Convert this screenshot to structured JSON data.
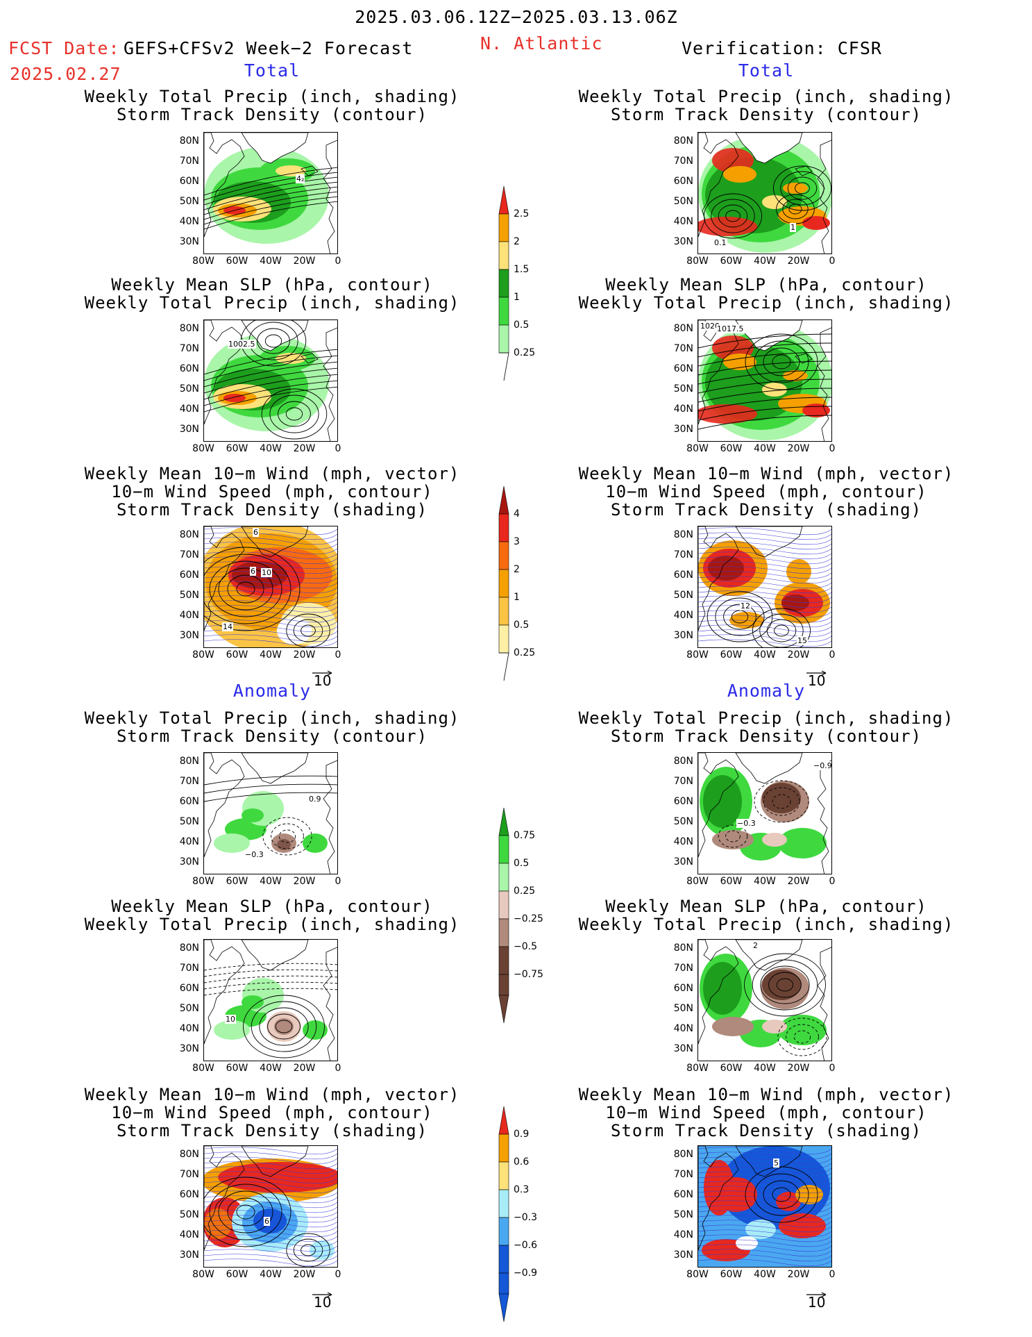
{
  "header": {
    "period": "2025.03.06.12Z−2025.03.13.06Z",
    "fcst_label": "FCST Date:",
    "model": "GEFS+CFSv2 Week−2 Forecast",
    "region": "N. Atlantic",
    "verification": "Verification: CFSR",
    "fcst_date": "2025.02.27"
  },
  "sections": {
    "total": "Total",
    "anomaly": "Anomaly"
  },
  "titles": {
    "precip_storm": [
      "Weekly Total Precip (inch, shading)",
      "Storm Track Density (contour)"
    ],
    "slp_precip": [
      "Weekly Mean SLP (hPa, contour)",
      "Weekly Total Precip (inch, shading)"
    ],
    "wind_storm": [
      "Weekly Mean 10−m Wind (mph, vector)",
      "10−m Wind Speed (mph, contour)",
      "Storm Track Density (shading)"
    ]
  },
  "axes": {
    "lat_ticks": [
      "80N",
      "70N",
      "60N",
      "50N",
      "40N",
      "30N"
    ],
    "lon_ticks": [
      "80W",
      "60W",
      "40W",
      "20W",
      "0"
    ]
  },
  "vector_reference": "10",
  "colorbars": {
    "precip_total": {
      "labels": [
        "2.5",
        "2",
        "1.5",
        "1",
        "0.5",
        "0.25"
      ],
      "colors": [
        "#e8281e",
        "#f5a000",
        "#fde27a",
        "#1d9e1d",
        "#3fd93f",
        "#a9f5a9"
      ]
    },
    "storm_total": {
      "labels": [
        "4",
        "3",
        "2",
        "1",
        "0.5",
        "0.25"
      ],
      "colors": [
        "#a8170f",
        "#e8281e",
        "#f86a10",
        "#f5a000",
        "#fbc444",
        "#fdf0a6"
      ]
    },
    "precip_anom": {
      "labels": [
        "0.75",
        "0.5",
        "0.25",
        "−0.25",
        "−0.5",
        "−0.75"
      ],
      "colors": [
        "#1d9e1d",
        "#3fd93f",
        "#a9f5a9",
        "#e8c9bd",
        "#b08a7c",
        "#6a4234"
      ]
    },
    "storm_anom": {
      "labels": [
        "0.9",
        "0.6",
        "0.3",
        "−0.3",
        "−0.6",
        "−0.9"
      ],
      "colors": [
        "#e8281e",
        "#f5a000",
        "#fde27a",
        "#a8ecf8",
        "#4aa8f0",
        "#1458d8"
      ]
    }
  },
  "contour_labels": {
    "fcst_precip_total": "4₂",
    "cfsr_precip_total": "1",
    "cfsr_precip_total_b": "0.1",
    "fcst_slp_total": "1002.5",
    "cfsr_slp_total_a": "1020",
    "cfsr_slp_total_b": "1017.5",
    "fcst_wind_total_a": "6",
    "fcst_wind_total_b": "10",
    "fcst_wind_total_c": "14",
    "fcst_wind_total_d": "6",
    "cfsr_wind_total_a": "12",
    "cfsr_wind_total_b": "15",
    "fcst_precip_anom_a": "0.9",
    "fcst_precip_anom_b": "−0.3",
    "cfsr_precip_anom_a": "−0.9",
    "cfsr_precip_anom_b": "−0.3",
    "fcst_slp_anom": "10",
    "cfsr_slp_anom": "2",
    "fcst_wind_anom": "6",
    "cfsr_wind_anom": "5"
  }
}
